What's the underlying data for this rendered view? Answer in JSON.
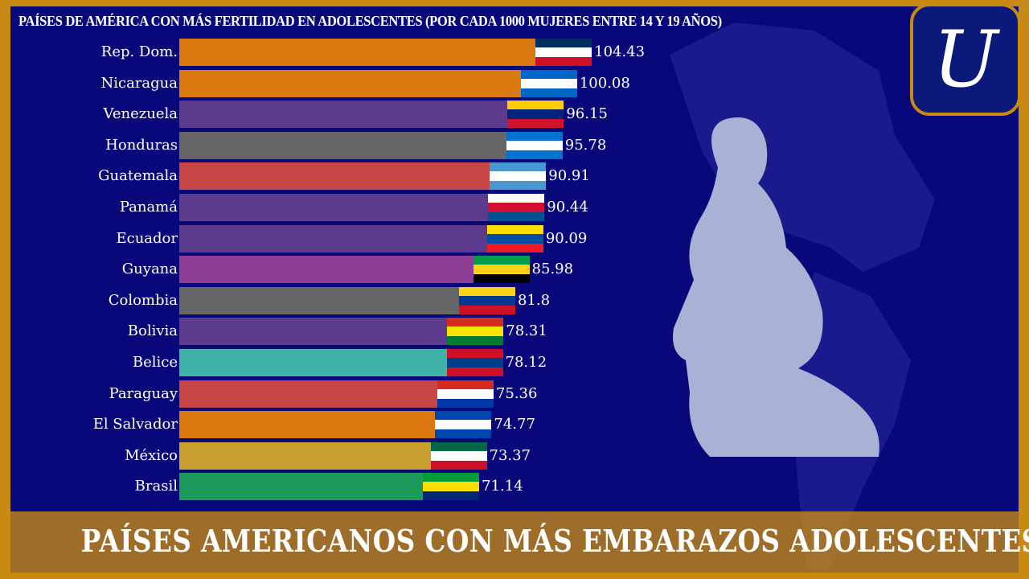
{
  "chart_data": {
    "type": "bar",
    "orientation": "horizontal",
    "title": "PAÍSES DE AMÉRICA CON MÁS FERTILIDAD EN ADOLESCENTES (POR CADA 1000 MUJERES ENTRE 14 Y 19 AÑOS)",
    "categories": [
      "Rep. Dom.",
      "Nicaragua",
      "Venezuela",
      "Honduras",
      "Guatemala",
      "Panamá",
      "Ecuador",
      "Guyana",
      "Colombia",
      "Bolivia",
      "Belice",
      "Paraguay",
      "El Salvador",
      "México",
      "Brasil"
    ],
    "values": [
      104.43,
      100.08,
      96.15,
      95.78,
      90.91,
      90.44,
      90.09,
      85.98,
      81.8,
      78.31,
      78.12,
      75.36,
      74.77,
      73.37,
      71.14
    ],
    "value_labels": [
      "104.43",
      "100.08",
      "96.15",
      "95.78",
      "90.91",
      "90.44",
      "90.09",
      "85.98",
      "81.8",
      "78.31",
      "78.12",
      "75.36",
      "74.77",
      "73.37",
      "71.14"
    ],
    "bar_colors": [
      "#d9780f",
      "#d9780f",
      "#5c3a8c",
      "#666666",
      "#c64545",
      "#5c3a8c",
      "#5c3a8c",
      "#8f3e96",
      "#666666",
      "#5c3a8c",
      "#3fb3a8",
      "#c64545",
      "#d9780f",
      "#c8a030",
      "#1b9a59"
    ],
    "flag_colors": [
      [
        "#002d62",
        "#ffffff",
        "#ce1126"
      ],
      [
        "#0067c6",
        "#ffffff",
        "#0067c6"
      ],
      [
        "#ffcc00",
        "#00247d",
        "#cf142b"
      ],
      [
        "#0073cf",
        "#ffffff",
        "#0073cf"
      ],
      [
        "#4997d0",
        "#ffffff",
        "#4997d0"
      ],
      [
        "#ffffff",
        "#d21034",
        "#005293"
      ],
      [
        "#ffdd00",
        "#034ea2",
        "#ed1c24"
      ],
      [
        "#009e49",
        "#fcd116",
        "#000000"
      ],
      [
        "#fcd116",
        "#003893",
        "#ce1126"
      ],
      [
        "#d52b1e",
        "#f9e300",
        "#007934"
      ],
      [
        "#ce1126",
        "#003f87",
        "#ce1126"
      ],
      [
        "#d52b1e",
        "#ffffff",
        "#0038a8"
      ],
      [
        "#0047ab",
        "#ffffff",
        "#0047ab"
      ],
      [
        "#006847",
        "#ffffff",
        "#ce1126"
      ],
      [
        "#009c3b",
        "#ffdf00",
        "#002776"
      ]
    ],
    "xlim": [
      -17.6,
      110
    ],
    "grid": false
  },
  "banner": "PAÍSES AMERICANOS CON MÁS EMBARAZOS ADOLESCENTES",
  "logo": {
    "letter": "U"
  }
}
